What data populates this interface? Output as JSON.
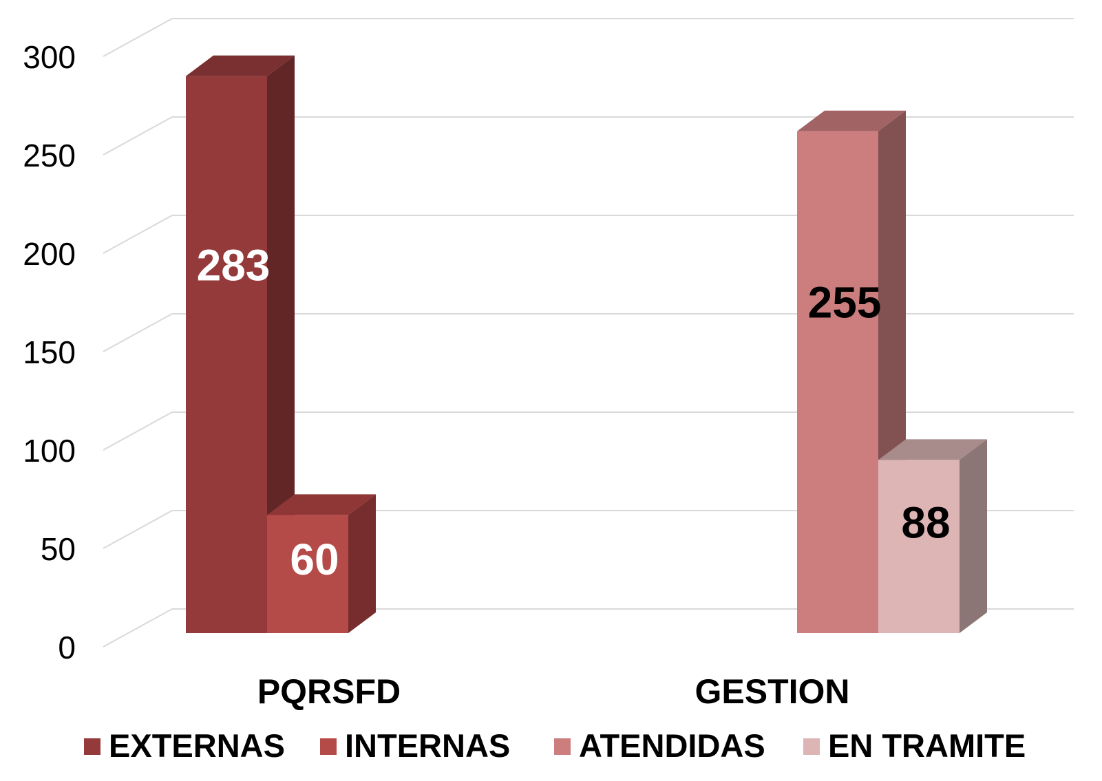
{
  "chart_data": {
    "type": "bar",
    "style": "3d-clustered-column",
    "categories": [
      "PQRSFD",
      "GESTION"
    ],
    "series": [
      {
        "name": "EXTERNAS",
        "category": "PQRSFD",
        "value": 283,
        "color": "#943A3A",
        "side_color": "#622626",
        "top_color": "#7A3030",
        "label_color": "#ffffff"
      },
      {
        "name": "INTERNAS",
        "category": "PQRSFD",
        "value": 60,
        "color": "#B54B48",
        "side_color": "#772D2D",
        "top_color": "#8F3636",
        "label_color": "#ffffff"
      },
      {
        "name": "ATENDIDAS",
        "category": "GESTION",
        "value": 255,
        "color": "#CC7E7E",
        "side_color": "#825151",
        "top_color": "#A16363",
        "label_color": "#000000"
      },
      {
        "name": "EN TRAMITE",
        "category": "GESTION",
        "value": 88,
        "color": "#DEB5B5",
        "side_color": "#8C7575",
        "top_color": "#A88B8B",
        "label_color": "#000000"
      }
    ],
    "y_axis": {
      "min": 0,
      "max": 300,
      "step": 50,
      "ticks": [
        "0",
        "50",
        "100",
        "150",
        "200",
        "250",
        "300"
      ]
    },
    "grid": true,
    "gridline_color": "#D9D9D9",
    "legend_position": "bottom",
    "data_labels": true
  }
}
